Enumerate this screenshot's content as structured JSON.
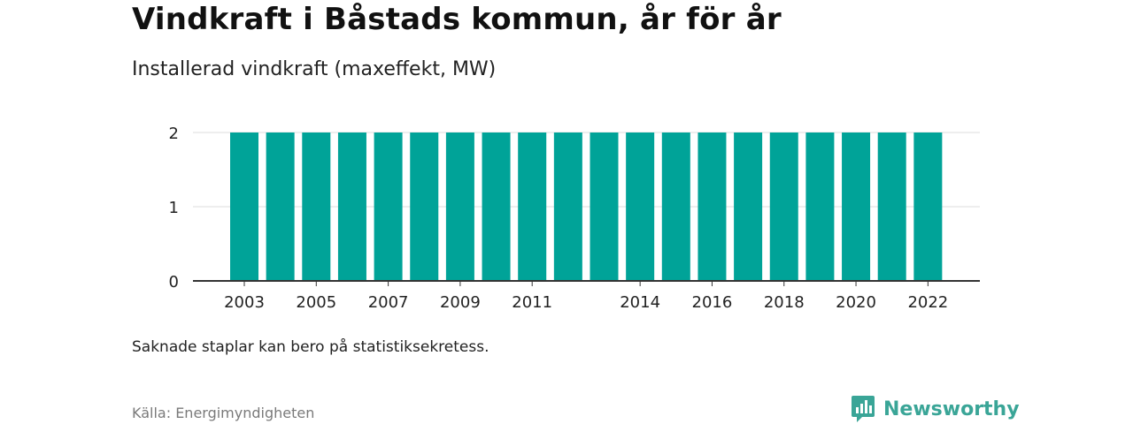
{
  "header": {
    "title": "Vindkraft i Båstads kommun, år för år",
    "subtitle": "Installerad vindkraft (maxeffekt, MW)"
  },
  "footer": {
    "note": "Saknade staplar kan bero på statistiksekretess.",
    "source": "Källa: Energimyndigheten",
    "brand": "Newsworthy",
    "brand_icon": "bar-chart-logo-icon"
  },
  "colors": {
    "bar": "#00a398",
    "grid": "#dddddd",
    "axis": "#333333",
    "brand": "#3aa597"
  },
  "chart_data": {
    "type": "bar",
    "title": "Vindkraft i Båstads kommun, år för år",
    "subtitle": "Installerad vindkraft (maxeffekt, MW)",
    "categories": [
      "2003",
      "2004",
      "2005",
      "2006",
      "2007",
      "2008",
      "2009",
      "2010",
      "2011",
      "2012",
      "2013",
      "2014",
      "2015",
      "2016",
      "2017",
      "2018",
      "2019",
      "2020",
      "2021",
      "2022"
    ],
    "values": [
      2,
      2,
      2,
      2,
      2,
      2,
      2,
      2,
      2,
      2,
      2,
      2,
      2,
      2,
      2,
      2,
      2,
      2,
      2,
      2
    ],
    "x_tick_labels": [
      "2003",
      "2005",
      "2007",
      "2009",
      "2011",
      "2014",
      "2016",
      "2018",
      "2020",
      "2022"
    ],
    "y_ticks": [
      0,
      1,
      2
    ],
    "ylim": [
      0,
      2
    ],
    "xlabel": "",
    "ylabel": "",
    "grid": true,
    "legend": "none"
  }
}
